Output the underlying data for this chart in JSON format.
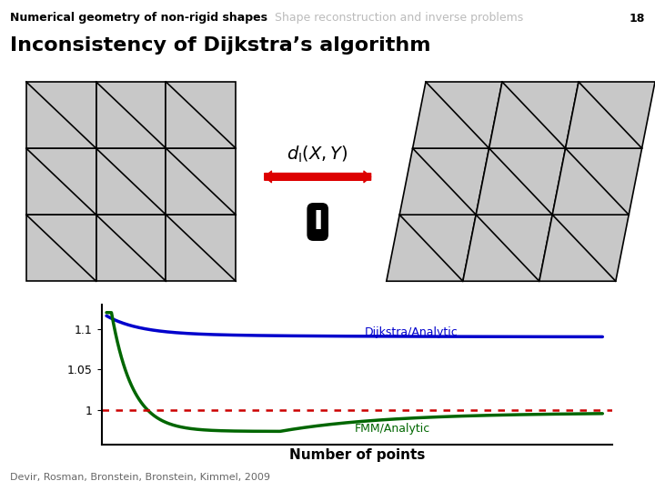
{
  "title_left": "Numerical geometry of non-rigid shapes",
  "title_right": "Shape reconstruction and inverse problems",
  "slide_num": "18",
  "main_title": "Inconsistency of Dijkstra’s algorithm",
  "xlabel": "Number of points",
  "label_dijkstra": "Dijkstra/Analytic",
  "label_fmm": "FMM/Analytic",
  "citation": "Devir, Rosman, Bronstein, Bronstein, Kimmel, 2009",
  "arrow_color": "#DD0000",
  "bg_color": "#ffffff",
  "dijkstra_color": "#0000CC",
  "fmm_color": "#006600",
  "dotted_color": "#CC0000",
  "mesh_fill": "#C8C8C8",
  "mesh_line": "#000000",
  "tick_fontsize": 9,
  "label_fontsize": 9,
  "header_fontsize": 9,
  "title_fontsize": 16,
  "citation_fontsize": 8
}
